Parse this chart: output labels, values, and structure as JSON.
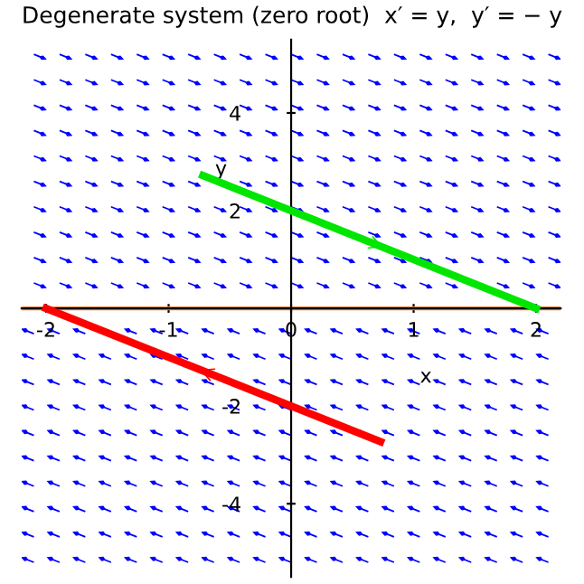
{
  "chart_data": {
    "type": "line",
    "title": "Degenerate system (zero root)  x′ = y,  y′ = − y",
    "xlabel": "x",
    "ylabel": "y",
    "xlim": [
      -2.2,
      2.2
    ],
    "ylim": [
      -5.5,
      5.5
    ],
    "xticks": [
      -2,
      -1,
      0,
      1,
      2
    ],
    "yticks": [
      -4,
      -2,
      2,
      4
    ],
    "series": [
      {
        "x": [
          -0.72,
          2
        ],
        "values": [
          2.72,
          0
        ],
        "color": "#00e600"
      },
      {
        "x": [
          -2,
          0.73
        ],
        "values": [
          0,
          -2.73
        ],
        "color": "#ff0000"
      },
      {
        "x": [
          -2.2,
          2.2
        ],
        "values": [
          0,
          0
        ],
        "color": "#ff8040"
      }
    ],
    "grid": false,
    "marker": "none",
    "line_style": "solid"
  }
}
